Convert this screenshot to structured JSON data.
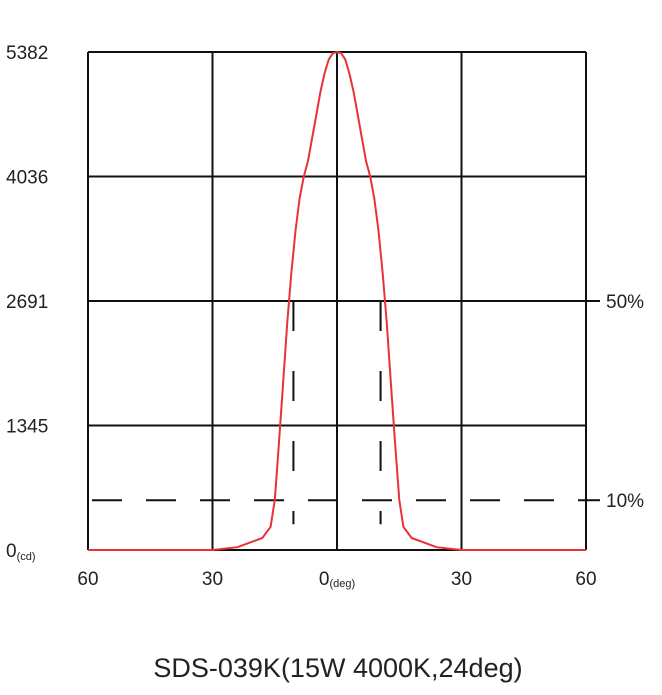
{
  "chart_data": {
    "type": "line",
    "title": "SDS-039K(15W 4000K,24deg)",
    "xlabel": "",
    "ylabel": "",
    "x_tick_labels": [
      "60",
      "30",
      "0",
      "30",
      "60"
    ],
    "x_tick_values": [
      -60,
      -30,
      0,
      30,
      60
    ],
    "x_zero_unit": "(deg)",
    "xlim": [
      -60,
      60
    ],
    "y_tick_labels": [
      "5382",
      "4036",
      "2691",
      "1345",
      "0"
    ],
    "y_tick_values": [
      5382,
      4036,
      2691,
      1345,
      0
    ],
    "y_zero_unit": "(cd)",
    "ylim": [
      0,
      5382
    ],
    "grid": true,
    "reference_lines": [
      {
        "label": "50%",
        "value": 2691
      },
      {
        "label": "10%",
        "value": 538
      }
    ],
    "beam_angle_markers_x": [
      -10.5,
      10.5
    ],
    "series": [
      {
        "color": "#e8323a",
        "x": [
          -60,
          -30,
          -24,
          -18,
          -16,
          -15,
          -14,
          -13,
          -12,
          -11,
          -10,
          -9,
          -8,
          -7,
          -6,
          -5,
          -4,
          -3,
          -2,
          -1,
          0,
          1,
          2,
          3,
          4,
          5,
          6,
          7,
          8,
          9,
          10,
          11,
          12,
          13,
          14,
          15,
          16,
          18,
          24,
          30,
          60
        ],
        "y": [
          0,
          0,
          30,
          130,
          250,
          540,
          1150,
          1800,
          2450,
          3000,
          3450,
          3800,
          4036,
          4200,
          4450,
          4700,
          4950,
          5150,
          5300,
          5370,
          5382,
          5370,
          5300,
          5150,
          4950,
          4700,
          4450,
          4200,
          4036,
          3800,
          3450,
          3000,
          2450,
          1800,
          1150,
          540,
          250,
          130,
          30,
          0,
          0
        ]
      }
    ]
  }
}
